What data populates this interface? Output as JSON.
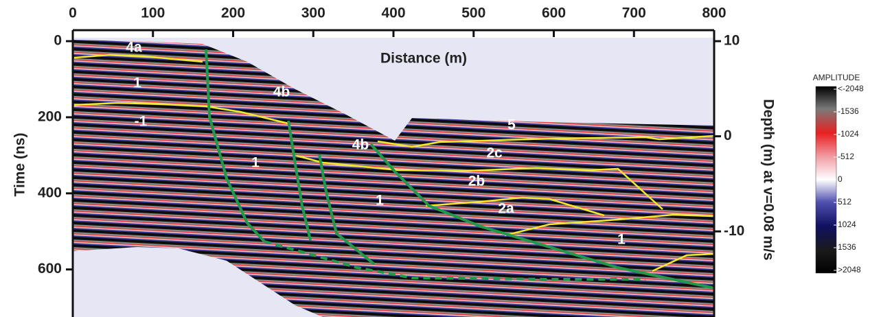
{
  "chart_data": {
    "type": "radargram",
    "xlabel": "Distance (m)",
    "ylabel": "Time (ns)",
    "y2label": "Depth (m) at v=0.08 m/s",
    "xlim": [
      0,
      800
    ],
    "xticks": [
      0,
      100,
      200,
      300,
      400,
      500,
      600,
      700,
      800
    ],
    "ylim": [
      0,
      725
    ],
    "yticks": [
      0,
      200,
      400,
      600
    ],
    "y2lim": [
      10,
      -19
    ],
    "y2ticks": [
      10,
      0,
      -10
    ],
    "annotations": [
      "4a",
      "1",
      "-1",
      "4b",
      "4b",
      "1",
      "1",
      "5",
      "2c",
      "2b",
      "2a",
      "1"
    ],
    "colorbar": {
      "title": "AMPLITUDE",
      "clim": [
        -2048,
        2048
      ],
      "ticks": [
        {
          "value": -2048,
          "label": "<-2048"
        },
        -1536,
        -1024,
        -512,
        0,
        512,
        1024,
        1536,
        {
          "value": 2048,
          "label": ">2048"
        }
      ]
    }
  }
}
